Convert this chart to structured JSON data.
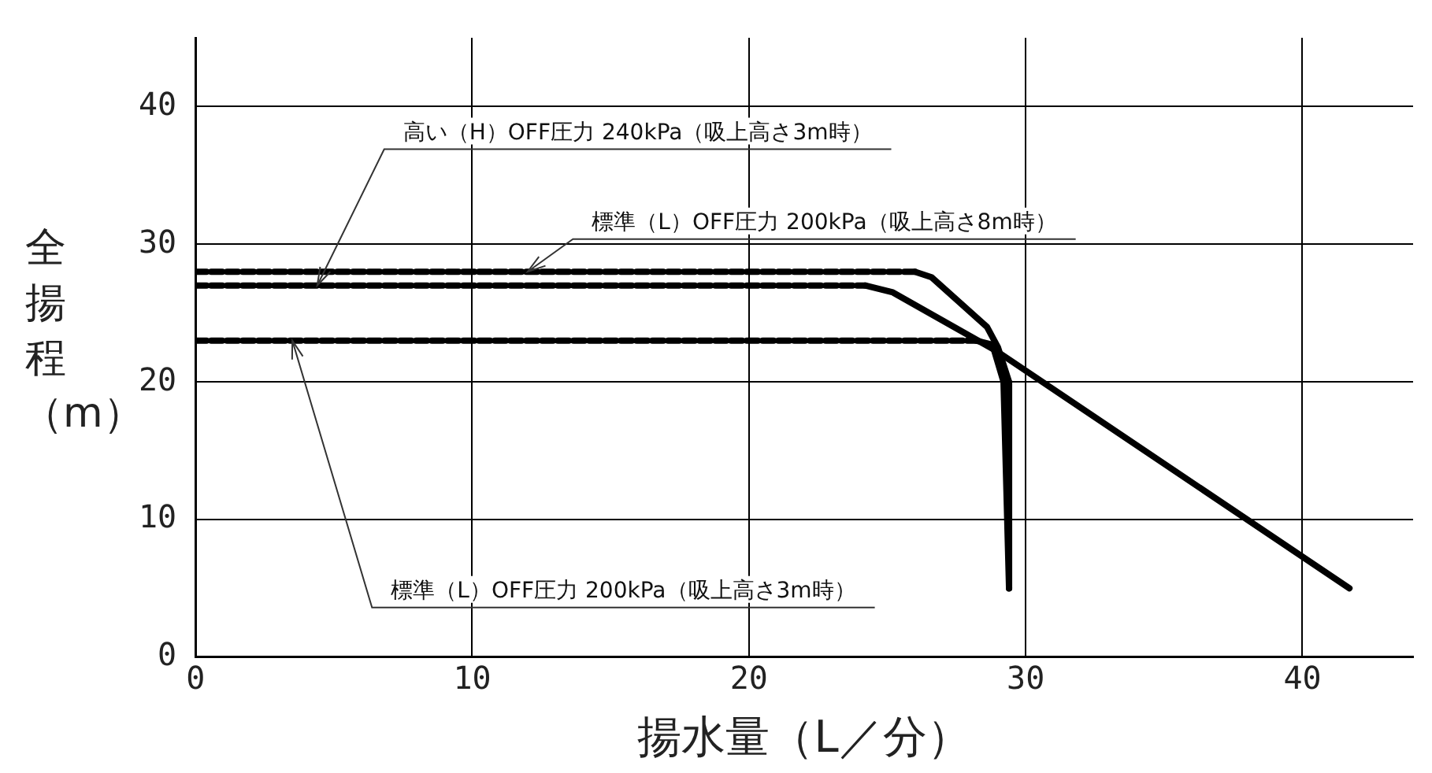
{
  "chart_data": {
    "type": "line",
    "xlabel": "揚水量（L／分）",
    "ylabel": "全揚程（m）",
    "xlim": [
      0,
      44
    ],
    "ylim": [
      0,
      45
    ],
    "xticks": [
      0,
      10,
      20,
      30,
      40
    ],
    "yticks": [
      0,
      10,
      20,
      30,
      40
    ],
    "grid": true,
    "legend": false,
    "marker": "none",
    "series": [
      {
        "color": "#000000",
        "line_style": "dashed",
        "x": [
          0,
          26.0
        ],
        "values": [
          28,
          28
        ]
      },
      {
        "color": "#000000",
        "line_style": "solid",
        "x": [
          26.0,
          26.6,
          28.6,
          29.0,
          29.4,
          29.4
        ],
        "values": [
          28,
          27.6,
          24.0,
          22.5,
          20,
          5
        ]
      },
      {
        "color": "#000000",
        "line_style": "dashed",
        "x": [
          0,
          24.2
        ],
        "values": [
          27,
          27
        ]
      },
      {
        "color": "#000000",
        "line_style": "solid",
        "x": [
          24.2,
          25.2,
          28.9,
          41.7
        ],
        "values": [
          27,
          26.5,
          22.3,
          5
        ]
      },
      {
        "color": "#000000",
        "line_style": "dashed",
        "x": [
          0,
          28.2
        ],
        "values": [
          23,
          23
        ]
      },
      {
        "color": "#000000",
        "line_style": "solid",
        "x": [
          28.2,
          28.8,
          29.2,
          29.4
        ],
        "values": [
          23,
          22.7,
          20,
          5
        ]
      }
    ],
    "annotations": [
      {
        "text": "高い（H）OFF圧力 240kPa（吸上高さ3m時）",
        "x": 4.4,
        "y": 27
      },
      {
        "text": "標準（L）OFF圧力 200kPa（吸上高さ8m時）",
        "x": 12,
        "y": 28
      },
      {
        "text": "標準（L）OFF圧力 200kPa（吸上高さ3m時）",
        "x": 3.5,
        "y": 23
      }
    ]
  }
}
